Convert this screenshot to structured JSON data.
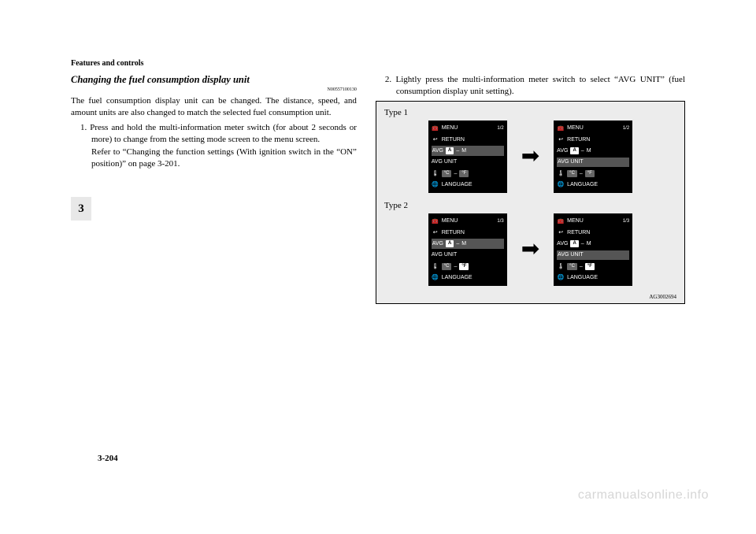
{
  "header": "Features and controls",
  "section_title": "Changing the fuel consumption display unit",
  "doc_code": "N00557100130",
  "intro": "The fuel consumption display unit can be changed. The distance, speed, and amount units are also changed to match the selected fuel consumption unit.",
  "step1": "1. Press and hold the multi-information meter switch (for about 2 seconds or more) to change from the setting mode screen to the menu screen.",
  "step1_sub": "Refer to “Changing the function settings (With ignition switch in the “ON” position)” on page 3-201.",
  "step2": "2. Lightly press the multi-information meter switch to select “AVG UNIT” (fuel consumption display unit setting).",
  "type1_label": "Type 1",
  "type2_label": "Type 2",
  "figure_code": "AG3002694",
  "chapter_num": "3",
  "page_num": "3-204",
  "watermark": "carmanualsonline.info",
  "screen": {
    "menu": "MENU",
    "return": "RETURN",
    "avg": "AVG",
    "a": "A",
    "m": "M",
    "avg_unit": "AVG UNIT",
    "degC": "°C",
    "degF": "°F",
    "language": "LANGUAGE",
    "frac": "1/2",
    "frac2": "1/3",
    "arrow": "➡"
  }
}
